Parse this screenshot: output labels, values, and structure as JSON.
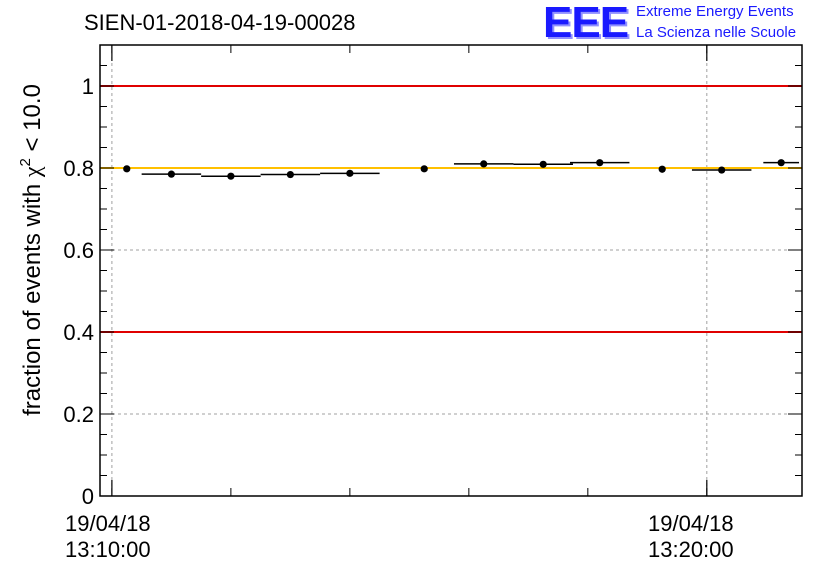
{
  "header": {
    "title": "SIEN-01-2018-04-19-00028",
    "logo_word": "EEE",
    "logo_line1": "Extreme Energy Events",
    "logo_line2": "La Scienza nelle Scuole"
  },
  "chart_data": {
    "type": "scatter",
    "title": "SIEN-01-2018-04-19-00028",
    "ylabel_prefix": "fraction of events with ",
    "ylabel_symbol": "χ",
    "ylabel_sup": "2",
    "ylabel_suffix": " < 10.0",
    "ylim": [
      0,
      1.1
    ],
    "yticks": [
      0,
      0.2,
      0.4,
      0.6,
      0.8,
      1
    ],
    "ytick_labels": [
      "0",
      "0.2",
      "0.4",
      "0.6",
      "0.8",
      "1"
    ],
    "xlim_minutes": [
      -0.2,
      11.6
    ],
    "x_units": "minutes after 19/04/18 13:10:00",
    "xtick_labels": [
      {
        "minute": 0,
        "date": "19/04/18",
        "time": "13:10:00"
      },
      {
        "minute": 10,
        "date": "19/04/18",
        "time": "13:20:00"
      }
    ],
    "reference_lines": [
      {
        "value": 1.0,
        "color": "#e00000"
      },
      {
        "value": 0.8,
        "color": "#ffc000"
      },
      {
        "value": 0.4,
        "color": "#e00000"
      }
    ],
    "points": [
      {
        "x": 0.25,
        "x_err": 0.05,
        "y": 0.798
      },
      {
        "x": 1.0,
        "x_err": 0.5,
        "y": 0.785
      },
      {
        "x": 2.0,
        "x_err": 0.5,
        "y": 0.78
      },
      {
        "x": 3.0,
        "x_err": 0.5,
        "y": 0.784
      },
      {
        "x": 4.0,
        "x_err": 0.5,
        "y": 0.787
      },
      {
        "x": 5.25,
        "x_err": 0.05,
        "y": 0.798
      },
      {
        "x": 6.25,
        "x_err": 0.5,
        "y": 0.81
      },
      {
        "x": 7.25,
        "x_err": 0.5,
        "y": 0.809
      },
      {
        "x": 8.2,
        "x_err": 0.5,
        "y": 0.813
      },
      {
        "x": 9.25,
        "x_err": 0.05,
        "y": 0.797
      },
      {
        "x": 10.25,
        "x_err": 0.5,
        "y": 0.795
      },
      {
        "x": 11.25,
        "x_err": 0.3,
        "y": 0.813
      }
    ],
    "colors": {
      "points": "#000000",
      "grid": "#a0a0a0",
      "axis": "#000000"
    }
  }
}
